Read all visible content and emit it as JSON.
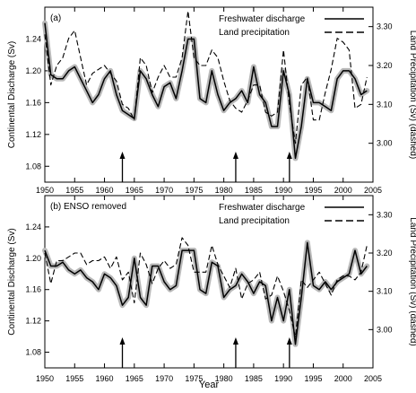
{
  "figure": {
    "xlabel": "Year"
  },
  "chart_data": [
    {
      "type": "line",
      "panel_label": "(a)",
      "ylabel_left": "Continental Discharge (Sv)",
      "ylabel_right": "Land Precipitation (Sv) (dashed)",
      "xlim": [
        1950,
        2005
      ],
      "ylim_left": [
        1.06,
        1.28
      ],
      "ylim_right": [
        2.9,
        3.35
      ],
      "xticks": [
        1950,
        1955,
        1960,
        1965,
        1970,
        1975,
        1980,
        1985,
        1990,
        1995,
        2000,
        2005
      ],
      "yticks_left": [
        1.08,
        1.12,
        1.16,
        1.2,
        1.24
      ],
      "yticks_right": [
        3.0,
        3.1,
        3.2,
        3.3
      ],
      "legend_position": "top-right",
      "legend": [
        {
          "label": "Freshwater discharge",
          "style": "solid"
        },
        {
          "label": "Land precipitation",
          "style": "dashed"
        }
      ],
      "arrows_at_years": [
        1963,
        1982,
        1991
      ],
      "series": [
        {
          "name": "Freshwater discharge",
          "axis": "left",
          "style": "solid",
          "uncertainty_band": true,
          "x": [
            1950,
            1951,
            1952,
            1953,
            1954,
            1955,
            1956,
            1957,
            1958,
            1959,
            1960,
            1961,
            1962,
            1963,
            1964,
            1965,
            1966,
            1967,
            1968,
            1969,
            1970,
            1971,
            1972,
            1973,
            1974,
            1975,
            1976,
            1977,
            1978,
            1979,
            1980,
            1981,
            1982,
            1983,
            1984,
            1985,
            1986,
            1987,
            1988,
            1989,
            1990,
            1991,
            1992,
            1993,
            1994,
            1995,
            1996,
            1997,
            1998,
            1999,
            2000,
            2001,
            2002,
            2003,
            2004
          ],
          "y": [
            1.26,
            1.195,
            1.19,
            1.19,
            1.2,
            1.205,
            1.19,
            1.175,
            1.16,
            1.17,
            1.19,
            1.2,
            1.17,
            1.15,
            1.145,
            1.14,
            1.2,
            1.19,
            1.17,
            1.155,
            1.18,
            1.185,
            1.165,
            1.2,
            1.24,
            1.24,
            1.165,
            1.16,
            1.2,
            1.17,
            1.15,
            1.16,
            1.165,
            1.175,
            1.16,
            1.205,
            1.17,
            1.16,
            1.13,
            1.13,
            1.2,
            1.17,
            1.09,
            1.13,
            1.19,
            1.16,
            1.16,
            1.155,
            1.15,
            1.19,
            1.2,
            1.2,
            1.19,
            1.17,
            1.175
          ]
        },
        {
          "name": "Land precipitation",
          "axis": "right",
          "style": "dashed",
          "x": [
            1950,
            1951,
            1952,
            1953,
            1954,
            1955,
            1956,
            1957,
            1958,
            1959,
            1960,
            1961,
            1962,
            1963,
            1964,
            1965,
            1966,
            1967,
            1968,
            1969,
            1970,
            1971,
            1972,
            1973,
            1974,
            1975,
            1976,
            1977,
            1978,
            1979,
            1980,
            1981,
            1982,
            1983,
            1984,
            1985,
            1986,
            1987,
            1988,
            1989,
            1990,
            1991,
            1992,
            1993,
            1994,
            1995,
            1996,
            1997,
            1998,
            1999,
            2000,
            2001,
            2002,
            2003,
            2004
          ],
          "y": [
            3.28,
            3.15,
            3.2,
            3.22,
            3.27,
            3.29,
            3.22,
            3.15,
            3.18,
            3.19,
            3.2,
            3.18,
            3.16,
            3.1,
            3.09,
            3.06,
            3.22,
            3.2,
            3.13,
            3.17,
            3.2,
            3.17,
            3.17,
            3.22,
            3.34,
            3.22,
            3.2,
            3.2,
            3.24,
            3.22,
            3.16,
            3.11,
            3.09,
            3.08,
            3.11,
            3.15,
            3.15,
            3.08,
            3.07,
            3.08,
            3.24,
            3.1,
            3.0,
            3.15,
            3.17,
            3.06,
            3.06,
            3.13,
            3.19,
            3.27,
            3.26,
            3.24,
            3.09,
            3.1,
            3.17
          ]
        }
      ]
    },
    {
      "type": "line",
      "panel_label": "(b)  ENSO removed",
      "ylabel_left": "Continental Discharge (Sv)",
      "ylabel_right": "Land Precipitation (Sv) (dashed)",
      "xlim": [
        1950,
        2005
      ],
      "ylim_left": [
        1.06,
        1.28
      ],
      "ylim_right": [
        2.9,
        3.35
      ],
      "xticks": [
        1950,
        1955,
        1960,
        1965,
        1970,
        1975,
        1980,
        1985,
        1990,
        1995,
        2000,
        2005
      ],
      "yticks_left": [
        1.08,
        1.12,
        1.16,
        1.2,
        1.24
      ],
      "yticks_right": [
        3.0,
        3.1,
        3.2,
        3.3
      ],
      "legend_position": "top-right",
      "legend": [
        {
          "label": "Freshwater discharge",
          "style": "solid"
        },
        {
          "label": "Land precipitation",
          "style": "dashed"
        }
      ],
      "arrows_at_years": [
        1963,
        1982,
        1991
      ],
      "series": [
        {
          "name": "Freshwater discharge",
          "axis": "left",
          "style": "solid",
          "uncertainty_band": true,
          "x": [
            1950,
            1951,
            1952,
            1953,
            1954,
            1955,
            1956,
            1957,
            1958,
            1959,
            1960,
            1961,
            1962,
            1963,
            1964,
            1965,
            1966,
            1967,
            1968,
            1969,
            1970,
            1971,
            1972,
            1973,
            1974,
            1975,
            1976,
            1977,
            1978,
            1979,
            1980,
            1981,
            1982,
            1983,
            1984,
            1985,
            1986,
            1987,
            1988,
            1989,
            1990,
            1991,
            1992,
            1993,
            1994,
            1995,
            1996,
            1997,
            1998,
            1999,
            2000,
            2001,
            2002,
            2003,
            2004
          ],
          "y": [
            1.21,
            1.19,
            1.19,
            1.195,
            1.185,
            1.18,
            1.185,
            1.175,
            1.17,
            1.16,
            1.18,
            1.175,
            1.165,
            1.14,
            1.15,
            1.2,
            1.15,
            1.14,
            1.19,
            1.19,
            1.17,
            1.16,
            1.165,
            1.21,
            1.21,
            1.21,
            1.16,
            1.155,
            1.195,
            1.19,
            1.15,
            1.16,
            1.165,
            1.18,
            1.17,
            1.155,
            1.17,
            1.165,
            1.12,
            1.15,
            1.12,
            1.16,
            1.09,
            1.15,
            1.22,
            1.165,
            1.16,
            1.17,
            1.16,
            1.17,
            1.175,
            1.18,
            1.21,
            1.18,
            1.19
          ]
        },
        {
          "name": "Land precipitation",
          "axis": "right",
          "style": "dashed",
          "x": [
            1950,
            1951,
            1952,
            1953,
            1954,
            1955,
            1956,
            1957,
            1958,
            1959,
            1960,
            1961,
            1962,
            1963,
            1964,
            1965,
            1966,
            1967,
            1968,
            1969,
            1970,
            1971,
            1972,
            1973,
            1974,
            1975,
            1976,
            1977,
            1978,
            1979,
            1980,
            1981,
            1982,
            1983,
            1984,
            1985,
            1986,
            1987,
            1988,
            1989,
            1990,
            1991,
            1992,
            1993,
            1994,
            1995,
            1996,
            1997,
            1998,
            1999,
            2000,
            2001,
            2002,
            2003,
            2004
          ],
          "y": [
            3.2,
            3.12,
            3.18,
            3.18,
            3.19,
            3.2,
            3.2,
            3.17,
            3.18,
            3.18,
            3.19,
            3.16,
            3.19,
            3.13,
            3.15,
            3.07,
            3.2,
            3.17,
            3.12,
            3.16,
            3.18,
            3.16,
            3.17,
            3.24,
            3.22,
            3.15,
            3.15,
            3.15,
            3.22,
            3.17,
            3.14,
            3.11,
            3.16,
            3.08,
            3.12,
            3.13,
            3.15,
            3.08,
            3.09,
            3.14,
            3.1,
            3.05,
            2.98,
            3.13,
            3.11,
            3.13,
            3.15,
            3.12,
            3.09,
            3.13,
            3.14,
            3.14,
            3.13,
            3.15,
            3.22
          ]
        }
      ]
    }
  ]
}
